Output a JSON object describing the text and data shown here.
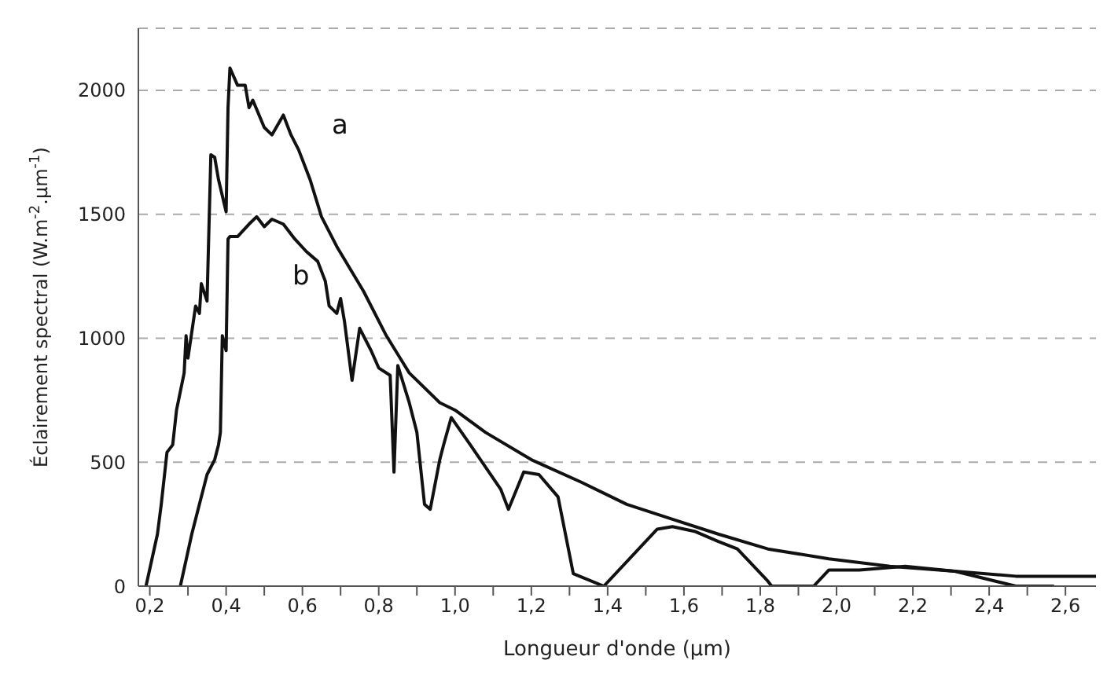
{
  "chart_data": {
    "type": "line",
    "xlabel": "Longueur d'onde (µm)",
    "ylabel": "Éclairement spectral (W.m$^{-2}$.µm$^{-1}$)",
    "xlim": [
      0.17,
      2.68
    ],
    "ylim": [
      0,
      2250
    ],
    "xticks": [
      {
        "value": 0.2,
        "label": "0,2"
      },
      {
        "value": 0.3,
        "label": null
      },
      {
        "value": 0.4,
        "label": "0,4"
      },
      {
        "value": 0.5,
        "label": null
      },
      {
        "value": 0.6,
        "label": "0,6"
      },
      {
        "value": 0.7,
        "label": null
      },
      {
        "value": 0.8,
        "label": "0,8"
      },
      {
        "value": 0.9,
        "label": null
      },
      {
        "value": 1.0,
        "label": "1,0"
      },
      {
        "value": 1.1,
        "label": null
      },
      {
        "value": 1.2,
        "label": "1,2"
      },
      {
        "value": 1.3,
        "label": null
      },
      {
        "value": 1.4,
        "label": "1,4"
      },
      {
        "value": 1.5,
        "label": null
      },
      {
        "value": 1.6,
        "label": "1,6"
      },
      {
        "value": 1.7,
        "label": null
      },
      {
        "value": 1.8,
        "label": "1,8"
      },
      {
        "value": 1.9,
        "label": null
      },
      {
        "value": 2.0,
        "label": "2,0"
      },
      {
        "value": 2.1,
        "label": null
      },
      {
        "value": 2.2,
        "label": "2,2"
      },
      {
        "value": 2.3,
        "label": null
      },
      {
        "value": 2.4,
        "label": "2,4"
      },
      {
        "value": 2.5,
        "label": null
      },
      {
        "value": 2.6,
        "label": "2,6"
      }
    ],
    "yticks": [
      0,
      500,
      1000,
      1500,
      2000
    ],
    "grid": "y",
    "line_style": "solid",
    "marker": "none",
    "annotations": [
      "a",
      "b"
    ],
    "series": [
      {
        "color": "#111111",
        "x": [
          0.19,
          0.22,
          0.23,
          0.245,
          0.26,
          0.27,
          0.29,
          0.295,
          0.3,
          0.32,
          0.33,
          0.335,
          0.35,
          0.36,
          0.37,
          0.38,
          0.4,
          0.405,
          0.41,
          0.43,
          0.45,
          0.46,
          0.47,
          0.5,
          0.52,
          0.55,
          0.57,
          0.59,
          0.62,
          0.65,
          0.69,
          0.76,
          0.82,
          0.88,
          0.96,
          1.0,
          1.08,
          1.2,
          1.33,
          1.45,
          1.57,
          1.69,
          1.82,
          1.98,
          2.14,
          2.31,
          2.47,
          2.68
        ],
        "values": [
          0,
          210,
          330,
          540,
          570,
          710,
          860,
          1010,
          920,
          1130,
          1100,
          1220,
          1150,
          1740,
          1730,
          1640,
          1510,
          1930,
          2090,
          2020,
          2020,
          1930,
          1960,
          1850,
          1820,
          1900,
          1820,
          1760,
          1640,
          1490,
          1370,
          1190,
          1010,
          860,
          740,
          710,
          620,
          510,
          420,
          330,
          270,
          210,
          150,
          110,
          80,
          60,
          40,
          40
        ]
      },
      {
        "color": "#111111",
        "x": [
          0.28,
          0.31,
          0.33,
          0.35,
          0.37,
          0.38,
          0.385,
          0.39,
          0.4,
          0.405,
          0.41,
          0.43,
          0.46,
          0.48,
          0.5,
          0.52,
          0.55,
          0.58,
          0.61,
          0.64,
          0.66,
          0.67,
          0.69,
          0.7,
          0.71,
          0.73,
          0.75,
          0.78,
          0.8,
          0.83,
          0.84,
          0.85,
          0.88,
          0.9,
          0.92,
          0.935,
          0.96,
          0.97,
          0.99,
          1.04,
          1.12,
          1.14,
          1.18,
          1.22,
          1.27,
          1.31,
          1.39,
          1.53,
          1.57,
          1.63,
          1.69,
          1.74,
          1.82,
          1.83,
          1.94,
          1.98,
          2.06,
          2.18,
          2.31,
          2.47,
          2.57
        ],
        "values": [
          0,
          210,
          330,
          450,
          510,
          570,
          620,
          1010,
          950,
          1400,
          1410,
          1410,
          1460,
          1490,
          1450,
          1480,
          1460,
          1400,
          1350,
          1310,
          1230,
          1130,
          1100,
          1160,
          1070,
          830,
          1040,
          950,
          880,
          850,
          460,
          890,
          740,
          620,
          330,
          310,
          510,
          570,
          680,
          570,
          390,
          310,
          460,
          450,
          360,
          50,
          0,
          230,
          240,
          220,
          180,
          150,
          20,
          0,
          0,
          65,
          65,
          80,
          60,
          0,
          0
        ]
      }
    ]
  }
}
